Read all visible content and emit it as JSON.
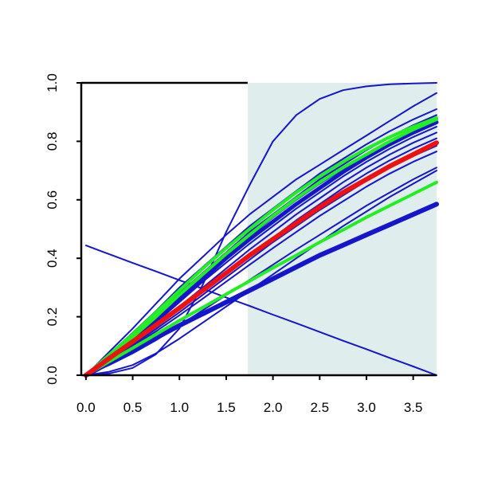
{
  "chart_data": {
    "type": "line",
    "title": "",
    "xlabel": "",
    "ylabel": "",
    "xlim": [
      -0.05,
      3.75
    ],
    "ylim": [
      0.0,
      1.0
    ],
    "x_ticks": [
      "0.0",
      "0.5",
      "1.0",
      "1.5",
      "2.0",
      "2.5",
      "3.0",
      "3.5"
    ],
    "y_ticks": [
      "0.0",
      "0.2",
      "0.4",
      "0.6",
      "0.8",
      "1.0"
    ],
    "shaded_region": {
      "x_start": 1.73,
      "x_end": 3.75,
      "color": "#e0eded"
    },
    "grid": false,
    "legend": "none",
    "colors": {
      "blue": "#1515cc",
      "green": "#22ee22",
      "red": "#ee1111",
      "axis": "#000000"
    },
    "x": [
      0,
      0.25,
      0.5,
      0.75,
      1.0,
      1.25,
      1.5,
      1.75,
      2.0,
      2.25,
      2.5,
      2.75,
      3.0,
      3.25,
      3.5,
      3.75
    ],
    "series": [
      {
        "color": "blue",
        "width": 2,
        "values": [
          0.444,
          0.414,
          0.384,
          0.355,
          0.325,
          0.296,
          0.266,
          0.237,
          0.207,
          0.178,
          0.148,
          0.118,
          0.089,
          0.059,
          0.03,
          0.0
        ]
      },
      {
        "color": "blue",
        "width": 2,
        "values": [
          0,
          0.006,
          0.025,
          0.072,
          0.16,
          0.31,
          0.49,
          0.65,
          0.8,
          0.89,
          0.945,
          0.975,
          0.988,
          0.995,
          0.998,
          1.0
        ]
      },
      {
        "color": "blue",
        "width": 2,
        "values": [
          0,
          0.08,
          0.16,
          0.245,
          0.33,
          0.405,
          0.48,
          0.55,
          0.61,
          0.67,
          0.72,
          0.77,
          0.82,
          0.87,
          0.92,
          0.965
        ]
      },
      {
        "color": "blue",
        "width": 2,
        "values": [
          0,
          0.072,
          0.145,
          0.22,
          0.3,
          0.37,
          0.44,
          0.51,
          0.57,
          0.63,
          0.69,
          0.74,
          0.79,
          0.835,
          0.875,
          0.91
        ]
      },
      {
        "color": "blue",
        "width": 2,
        "values": [
          0,
          0.067,
          0.135,
          0.2,
          0.28,
          0.35,
          0.42,
          0.49,
          0.55,
          0.61,
          0.67,
          0.72,
          0.77,
          0.815,
          0.855,
          0.89
        ]
      },
      {
        "color": "blue",
        "width": 2,
        "values": [
          0,
          0.064,
          0.13,
          0.195,
          0.27,
          0.34,
          0.41,
          0.475,
          0.54,
          0.6,
          0.655,
          0.705,
          0.755,
          0.8,
          0.84,
          0.875
        ]
      },
      {
        "color": "blue",
        "width": 5,
        "values": [
          0,
          0.062,
          0.125,
          0.19,
          0.26,
          0.33,
          0.4,
          0.465,
          0.525,
          0.585,
          0.64,
          0.695,
          0.745,
          0.79,
          0.83,
          0.865
        ]
      },
      {
        "color": "blue",
        "width": 2,
        "values": [
          0,
          0.06,
          0.12,
          0.18,
          0.25,
          0.32,
          0.385,
          0.45,
          0.51,
          0.57,
          0.625,
          0.68,
          0.73,
          0.775,
          0.815,
          0.85
        ]
      },
      {
        "color": "blue",
        "width": 2,
        "values": [
          0,
          0.056,
          0.112,
          0.17,
          0.235,
          0.3,
          0.365,
          0.43,
          0.49,
          0.55,
          0.605,
          0.66,
          0.71,
          0.755,
          0.795,
          0.83
        ]
      },
      {
        "color": "blue",
        "width": 2,
        "values": [
          0,
          0.054,
          0.108,
          0.165,
          0.225,
          0.29,
          0.35,
          0.41,
          0.47,
          0.53,
          0.585,
          0.64,
          0.69,
          0.735,
          0.775,
          0.81
        ]
      },
      {
        "color": "blue",
        "width": 2,
        "values": [
          0,
          0.052,
          0.104,
          0.158,
          0.215,
          0.275,
          0.335,
          0.395,
          0.455,
          0.51,
          0.565,
          0.615,
          0.665,
          0.71,
          0.75,
          0.785
        ]
      },
      {
        "color": "blue",
        "width": 2,
        "values": [
          0,
          0.05,
          0.1,
          0.15,
          0.205,
          0.262,
          0.32,
          0.378,
          0.435,
          0.49,
          0.545,
          0.595,
          0.645,
          0.69,
          0.73,
          0.765
        ]
      },
      {
        "color": "blue",
        "width": 2,
        "values": [
          0,
          0.035,
          0.075,
          0.12,
          0.17,
          0.222,
          0.274,
          0.326,
          0.378,
          0.43,
          0.48,
          0.53,
          0.58,
          0.625,
          0.67,
          0.71
        ]
      },
      {
        "color": "blue",
        "width": 2,
        "values": [
          0,
          0.012,
          0.035,
          0.075,
          0.125,
          0.18,
          0.235,
          0.29,
          0.345,
          0.4,
          0.455,
          0.51,
          0.56,
          0.61,
          0.655,
          0.7
        ]
      },
      {
        "color": "blue",
        "width": 6,
        "values": [
          0,
          0.043,
          0.085,
          0.128,
          0.17,
          0.21,
          0.25,
          0.29,
          0.33,
          0.37,
          0.41,
          0.445,
          0.48,
          0.515,
          0.55,
          0.585
        ]
      },
      {
        "color": "green",
        "width": 4,
        "values": [
          0,
          0.07,
          0.14,
          0.215,
          0.29,
          0.365,
          0.435,
          0.5,
          0.565,
          0.625,
          0.68,
          0.73,
          0.775,
          0.815,
          0.85,
          0.88
        ]
      },
      {
        "color": "green",
        "width": 4,
        "values": [
          0,
          0.065,
          0.13,
          0.2,
          0.275,
          0.345,
          0.415,
          0.48,
          0.545,
          0.605,
          0.66,
          0.71,
          0.755,
          0.8,
          0.84,
          0.875
        ]
      },
      {
        "color": "green",
        "width": 4,
        "values": [
          0,
          0.047,
          0.093,
          0.14,
          0.187,
          0.232,
          0.277,
          0.322,
          0.367,
          0.41,
          0.455,
          0.497,
          0.54,
          0.58,
          0.62,
          0.66
        ]
      },
      {
        "color": "red",
        "width": 6,
        "values": [
          0,
          0.058,
          0.115,
          0.172,
          0.23,
          0.29,
          0.35,
          0.41,
          0.465,
          0.52,
          0.575,
          0.625,
          0.67,
          0.715,
          0.755,
          0.795
        ]
      }
    ]
  }
}
